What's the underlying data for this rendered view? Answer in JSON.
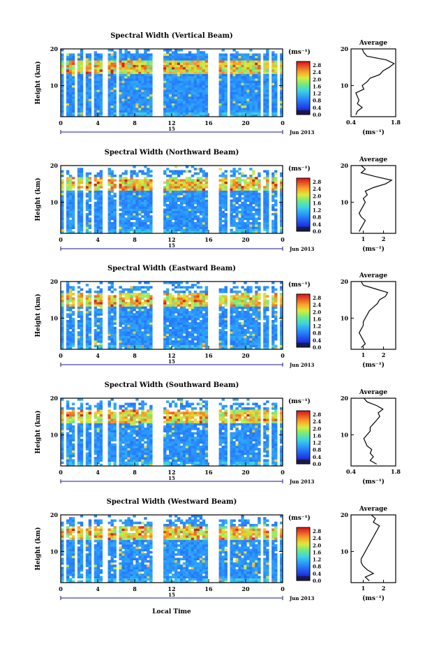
{
  "figure": {
    "date_label": "Jun 2013",
    "day_label": "15",
    "xlabel": "Local Time",
    "ylabel": "Height (km)",
    "avg_title": "Average",
    "cbar_unit": "(ms⁻¹)",
    "avg_xunit": "(ms⁻¹)"
  },
  "chart_data": [
    {
      "type": "heatmap",
      "title": "Spectral Width (Vertical Beam)",
      "xlabel": "Local Time",
      "ylabel": "Height (km)",
      "xticks": [
        "0",
        "4",
        "8",
        "12",
        "16",
        "20",
        "0"
      ],
      "yticks": [
        "20",
        "10"
      ],
      "xlim": [
        0,
        24
      ],
      "ylim": [
        1.5,
        20
      ],
      "colorbar": {
        "ticks": [
          "2.8",
          "2.4",
          "2.0",
          "1.6",
          "1.2",
          "0.8",
          "0.4",
          "0.0"
        ],
        "range": [
          0.0,
          3.0
        ]
      },
      "average": {
        "title": "Average",
        "xticks": [
          "0.4",
          "1.8"
        ],
        "xlim": [
          0.4,
          1.8
        ],
        "yticks": [
          "20",
          "10"
        ],
        "height": [
          2,
          3,
          4,
          5,
          6,
          7,
          8,
          9,
          10,
          11,
          12,
          13,
          14,
          15,
          16,
          17,
          18,
          19,
          20
        ],
        "value": [
          0.55,
          0.6,
          0.75,
          0.6,
          0.65,
          0.6,
          0.55,
          0.8,
          0.75,
          0.9,
          1.0,
          1.3,
          1.4,
          1.6,
          1.75,
          1.5,
          0.9,
          0.8,
          0.75
        ]
      }
    },
    {
      "type": "heatmap",
      "title": "Spectral Width (Northward Beam)",
      "xlabel": "Local Time",
      "ylabel": "Height (km)",
      "xticks": [
        "0",
        "4",
        "8",
        "12",
        "16",
        "20",
        "0"
      ],
      "yticks": [
        "20",
        "10"
      ],
      "xlim": [
        0,
        24
      ],
      "ylim": [
        1.5,
        20
      ],
      "colorbar": {
        "ticks": [
          "2.8",
          "2.4",
          "2.0",
          "1.6",
          "1.2",
          "0.8",
          "0.4",
          "0.0"
        ],
        "range": [
          0.0,
          3.0
        ]
      },
      "average": {
        "title": "Average",
        "xticks": [
          "1",
          "2"
        ],
        "xlim": [
          0.4,
          2.6
        ],
        "yticks": [
          "20",
          "10"
        ],
        "height": [
          2,
          3,
          4,
          5,
          6,
          7,
          8,
          9,
          10,
          11,
          12,
          13,
          14,
          15,
          16,
          17,
          18,
          19,
          20
        ],
        "value": [
          0.8,
          0.9,
          1.0,
          1.1,
          0.9,
          0.8,
          0.9,
          1.0,
          1.1,
          1.0,
          1.2,
          1.1,
          1.5,
          2.1,
          2.4,
          1.6,
          0.9,
          1.1,
          0.9
        ]
      }
    },
    {
      "type": "heatmap",
      "title": "Spectral Width (Eastward Beam)",
      "xlabel": "Local Time",
      "ylabel": "Height (km)",
      "xticks": [
        "0",
        "4",
        "8",
        "12",
        "16",
        "20",
        "0"
      ],
      "yticks": [
        "20",
        "10"
      ],
      "xlim": [
        0,
        24
      ],
      "ylim": [
        1.5,
        20
      ],
      "colorbar": {
        "ticks": [
          "2.8",
          "2.4",
          "2.0",
          "1.6",
          "1.2",
          "0.8",
          "0.4",
          "0.0"
        ],
        "range": [
          0.0,
          3.0
        ]
      },
      "average": {
        "title": "Average",
        "xticks": [
          "1",
          "2"
        ],
        "xlim": [
          0.4,
          2.6
        ],
        "yticks": [
          "20",
          "10"
        ],
        "height": [
          2,
          3,
          4,
          5,
          6,
          7,
          8,
          9,
          10,
          11,
          12,
          13,
          14,
          15,
          16,
          17,
          18,
          19,
          20
        ],
        "value": [
          0.9,
          1.1,
          1.0,
          0.9,
          0.8,
          0.9,
          1.0,
          1.0,
          1.1,
          1.2,
          1.3,
          1.5,
          1.7,
          1.8,
          2.1,
          2.2,
          1.6,
          1.0,
          0.9
        ]
      }
    },
    {
      "type": "heatmap",
      "title": "Spectral Width (Southward Beam)",
      "xlabel": "Local Time",
      "ylabel": "Height (km)",
      "xticks": [
        "0",
        "4",
        "8",
        "12",
        "16",
        "20",
        "0"
      ],
      "yticks": [
        "20",
        "10"
      ],
      "xlim": [
        0,
        24
      ],
      "ylim": [
        1.5,
        20
      ],
      "colorbar": {
        "ticks": [
          "2.8",
          "2.4",
          "2.0",
          "1.6",
          "1.2",
          "0.8",
          "0.4",
          "0.0"
        ],
        "range": [
          0.0,
          3.0
        ]
      },
      "average": {
        "title": "Average",
        "xticks": [
          "0.4",
          "1.8"
        ],
        "xlim": [
          0.4,
          1.8
        ],
        "yticks": [
          "20",
          "10"
        ],
        "height": [
          2,
          3,
          4,
          5,
          6,
          7,
          8,
          9,
          10,
          11,
          12,
          13,
          14,
          15,
          16,
          17,
          18,
          19,
          20
        ],
        "value": [
          1.2,
          1.0,
          1.1,
          1.0,
          1.05,
          0.9,
          0.85,
          0.8,
          0.9,
          1.0,
          1.0,
          1.1,
          1.2,
          1.3,
          1.25,
          1.4,
          1.2,
          0.9,
          0.8
        ]
      }
    },
    {
      "type": "heatmap",
      "title": "Spectral Width (Westward Beam)",
      "xlabel": "Local Time",
      "ylabel": "Height (km)",
      "xticks": [
        "0",
        "4",
        "8",
        "12",
        "16",
        "20",
        "0"
      ],
      "yticks": [
        "20",
        "10"
      ],
      "xlim": [
        0,
        24
      ],
      "ylim": [
        1.5,
        20
      ],
      "colorbar": {
        "ticks": [
          "2.8",
          "2.4",
          "2.0",
          "1.6",
          "1.2",
          "0.8",
          "0.4",
          "0.0"
        ],
        "range": [
          0.0,
          3.0
        ]
      },
      "average": {
        "title": "Average",
        "xticks": [
          "1",
          "2"
        ],
        "xlim": [
          0.4,
          2.6
        ],
        "yticks": [
          "20",
          "10"
        ],
        "height": [
          2,
          3,
          4,
          5,
          6,
          7,
          8,
          9,
          10,
          11,
          12,
          13,
          14,
          15,
          16,
          17,
          18,
          19,
          20
        ],
        "value": [
          1.3,
          1.1,
          1.5,
          1.2,
          1.0,
          0.9,
          0.9,
          1.0,
          1.1,
          1.2,
          1.3,
          1.4,
          1.5,
          1.6,
          1.7,
          1.8,
          1.5,
          1.6,
          1.4
        ]
      }
    }
  ]
}
